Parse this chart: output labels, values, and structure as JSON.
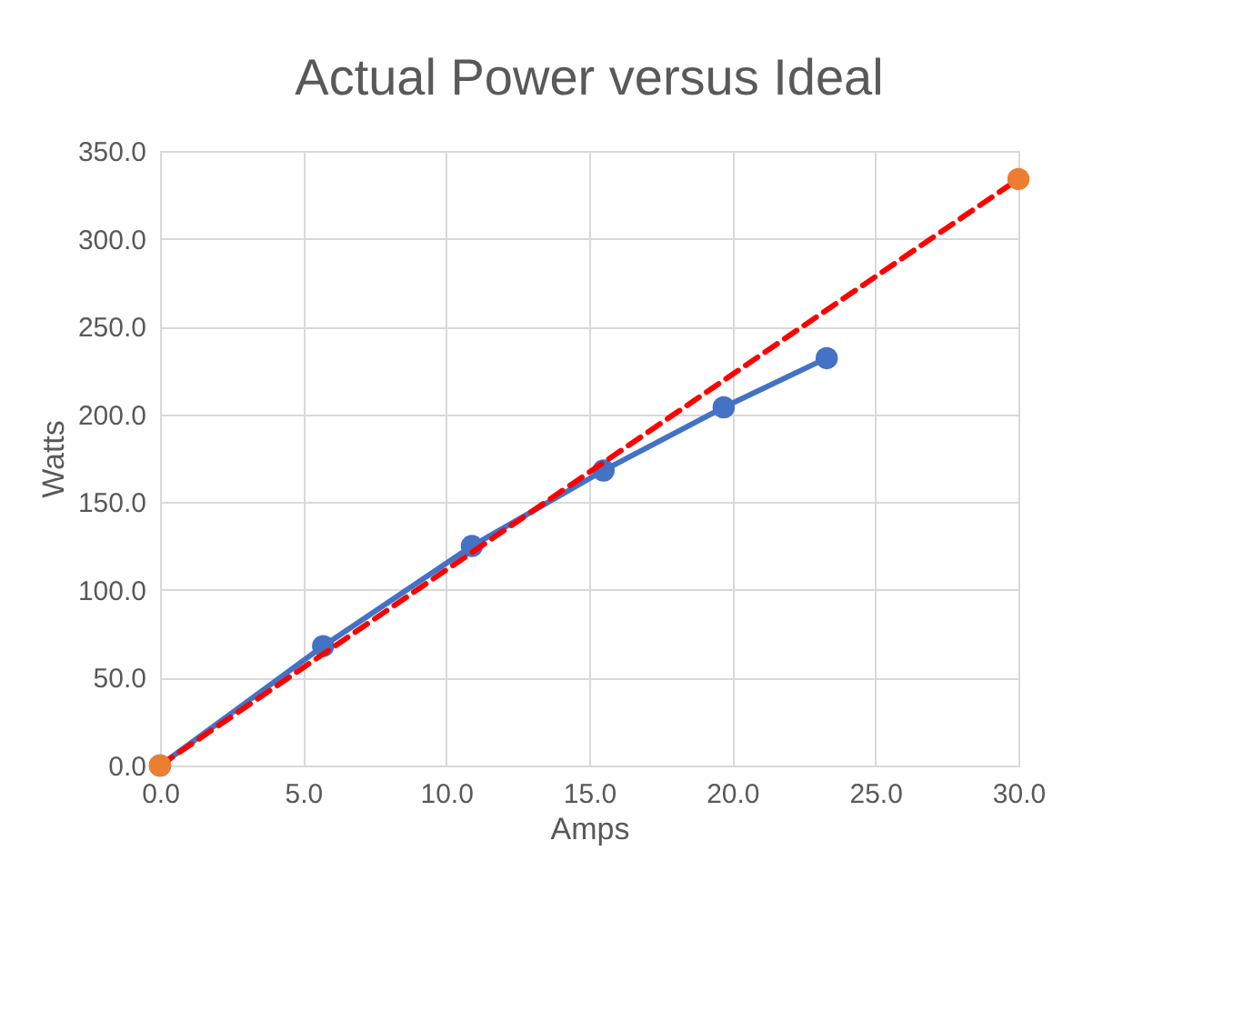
{
  "chart_data": {
    "type": "line",
    "title": "Actual Power versus Ideal",
    "xlabel": "Amps",
    "ylabel": "Watts",
    "xlim": [
      0,
      30
    ],
    "ylim": [
      0,
      350
    ],
    "xticks": [
      {
        "value": 0,
        "label": "0.0"
      },
      {
        "value": 5,
        "label": "5.0"
      },
      {
        "value": 10,
        "label": "10.0"
      },
      {
        "value": 15,
        "label": "15.0"
      },
      {
        "value": 20,
        "label": "20.0"
      },
      {
        "value": 25,
        "label": "25.0"
      },
      {
        "value": 30,
        "label": "30.0"
      }
    ],
    "yticks": [
      {
        "value": 0,
        "label": "0.0"
      },
      {
        "value": 50,
        "label": "50.0"
      },
      {
        "value": 100,
        "label": "100.0"
      },
      {
        "value": 150,
        "label": "150.0"
      },
      {
        "value": 200,
        "label": "200.0"
      },
      {
        "value": 250,
        "label": "250.0"
      },
      {
        "value": 300,
        "label": "300.0"
      },
      {
        "value": 350,
        "label": "350.0"
      }
    ],
    "grid": true,
    "series": [
      {
        "color": "#4472c4",
        "marker": "circle",
        "line_style": "solid",
        "x": [
          0,
          5.7,
          10.9,
          15.5,
          19.7,
          23.3
        ],
        "values": [
          0,
          68,
          125,
          168,
          204,
          232
        ]
      },
      {
        "color": "#ff0000",
        "marker": "none",
        "line_style": "dashed",
        "x": [
          0,
          30
        ],
        "values": [
          0,
          334
        ]
      },
      {
        "type": "scatter",
        "color": "#ed7d31",
        "marker": "circle",
        "x": [
          0,
          30
        ],
        "values": [
          0,
          334
        ]
      }
    ]
  }
}
